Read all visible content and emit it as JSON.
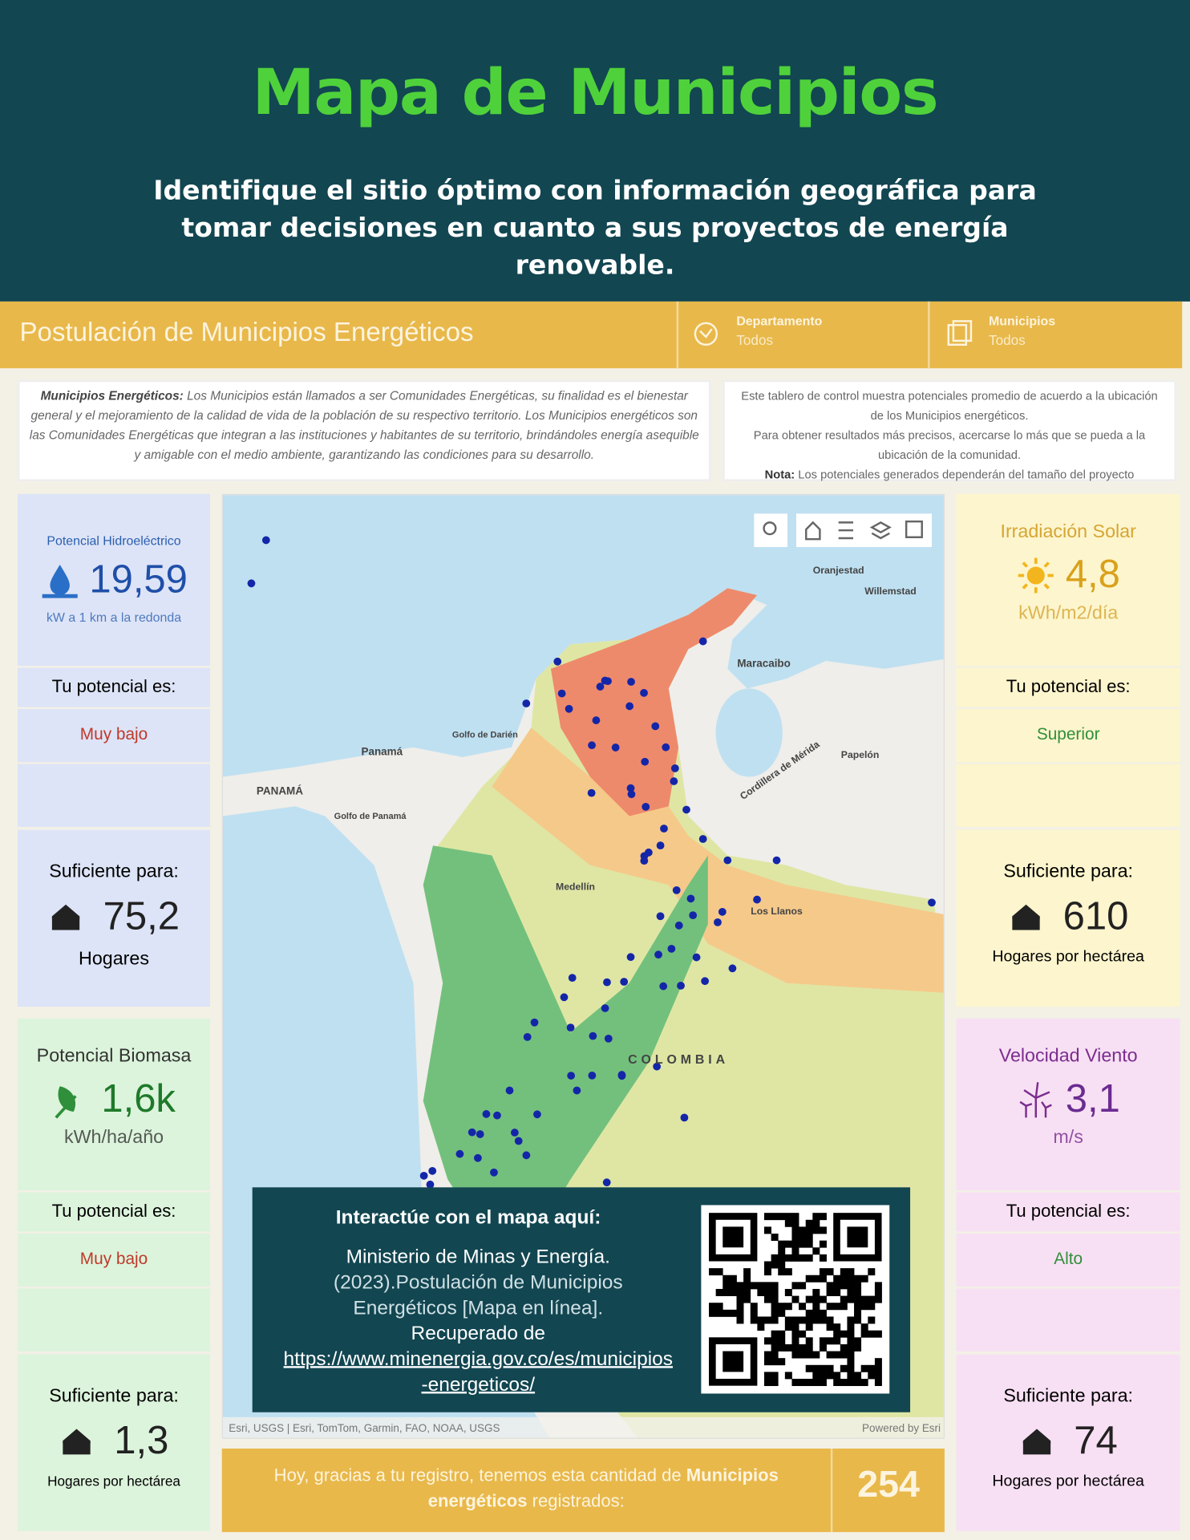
{
  "header": {
    "title": "Mapa de Municipios",
    "subtitle": "Identifique el sitio óptimo con información geográfica para tomar decisiones en cuanto a sus proyectos de energía renovable."
  },
  "dashboard": {
    "title": "Postulación de Municipios Energéticos",
    "filters": [
      {
        "label": "Departamento",
        "value": "Todos"
      },
      {
        "label": "Municipios",
        "value": "Todos"
      }
    ],
    "intro": {
      "term": "Municipios Energéticos:",
      "text": "Los Municipios están llamados a ser Comunidades Energéticas, su finalidad es el bienestar general y el mejoramiento de la calidad de vida de la población de su respectivo territorio. Los Municipios energéticos son las Comunidades Energéticas que integran a las instituciones y habitantes de su territorio, brindándoles energía asequible y amigable con el medio ambiente, garantizando las condiciones para su desarrollo."
    },
    "note": {
      "line1": "Este tablero de control muestra potenciales promedio de acuerdo a la ubicación de los Municipios energéticos.",
      "line2": "Para obtener resultados más precisos, acercarse lo más que se pueda a la ubicación de la comunidad.",
      "label": "Nota:",
      "text": "Los potenciales generados dependerán del tamaño del proyecto"
    },
    "cards": [
      {
        "title": "Potencial Hidroeléctrico",
        "value": "19,59",
        "unit": "kW a 1 km a la redonda",
        "level_label": "Tu potencial es:",
        "level": "Muy bajo",
        "enough_label": "Suficiente para:",
        "homes": "75,2",
        "homes_unit": "Hogares"
      },
      {
        "title": "Potencial Biomasa",
        "value": "1,6k",
        "unit": "kWh/ha/año",
        "level_label": "Tu potencial es:",
        "level": "Muy bajo",
        "enough_label": "Suficiente para:",
        "homes": "1,3",
        "homes_unit": "Hogares por hectárea"
      },
      {
        "title": "Irradiación Solar",
        "value": "4,8",
        "unit": "kWh/m2/día",
        "level_label": "Tu potencial es:",
        "level": "Superior",
        "enough_label": "Suficiente para:",
        "homes": "610",
        "homes_unit": "Hogares por hectárea"
      },
      {
        "title": "Velocidad Viento",
        "value": "3,1",
        "unit": "m/s",
        "level_label": "Tu potencial es:",
        "level": "Alto",
        "enough_label": "Suficiente para:",
        "homes": "74",
        "homes_unit": "Hogares por hectárea"
      }
    ],
    "map": {
      "labels": [
        "Oranjestad",
        "Willemstad",
        "Maracaibo",
        "Golfo de Darién",
        "Panamá",
        "PANAMÁ",
        "Golfo de Panamá",
        "Cordillera de Mérida",
        "Papelón",
        "COLOMBIA",
        "Los Llanos",
        "Medellín"
      ],
      "attribution": "Esri, USGS | Esri, TomTom, Garmin, FAO, NOAA, USGS",
      "powered": "Powered by Esri"
    },
    "qr_panel": {
      "heading": "Interactúe con el mapa aquí:",
      "author": "Ministerio de Minas y Energía.",
      "citation": "(2023).Postulación de Municipios Energéticos [Mapa en línea].",
      "retrieved": "Recuperado de",
      "url": "https://www.minenergia.gov.co/es/municipios-energeticos/"
    },
    "footer": {
      "text_before": "Hoy, gracias a tu registro, tenemos esta cantidad de ",
      "text_bold": "Municipios energéticos",
      "text_after": " registrados:",
      "count": "254"
    }
  }
}
